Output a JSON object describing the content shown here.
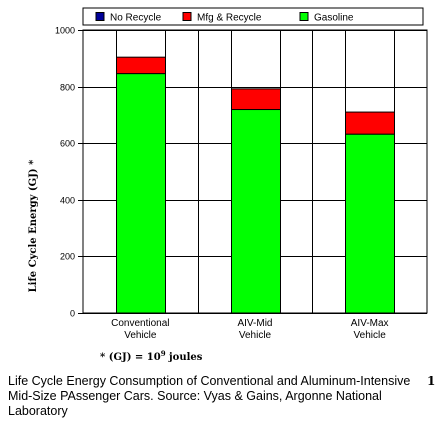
{
  "chart_data": {
    "type": "bar",
    "stacked": true,
    "categories": [
      [
        "Conventional",
        "Vehicle"
      ],
      [
        "AIV-Mid",
        "Vehicle"
      ],
      [
        "AIV-Max",
        "Vehicle"
      ]
    ],
    "series": [
      {
        "name": "Gasoline",
        "color": "#00ff00",
        "values": [
          846,
          719,
          632
        ]
      },
      {
        "name": "Mfg & Recycle",
        "color": "#ff0000",
        "values": [
          58,
          73,
          78
        ]
      },
      {
        "name": "No Recycle",
        "color": "#000099",
        "values": [
          0,
          0,
          0
        ]
      }
    ],
    "legend_order": [
      "No Recycle",
      "Mfg & Recycle",
      "Gasoline"
    ],
    "legend_position": "top",
    "ylabel": "Life Cycle Energy (GJ) *",
    "xlabel": "",
    "title": "",
    "ylim": [
      0,
      1000
    ],
    "yticks": [
      0,
      200,
      400,
      600,
      800,
      1000
    ],
    "ytick_labels": [
      "0",
      "200",
      "400",
      "600",
      "800",
      "1000"
    ],
    "grid": true
  },
  "footnote": {
    "prefix": "* (GJ) = 10",
    "exponent": "9",
    "suffix": " joules"
  },
  "caption": "Life Cycle Energy Consumption of Conventional and Aluminum-Intensive Mid-Size PAssenger Cars.  Source: Vyas & Gains, Argonne National Laboratory",
  "page_marker": "1"
}
